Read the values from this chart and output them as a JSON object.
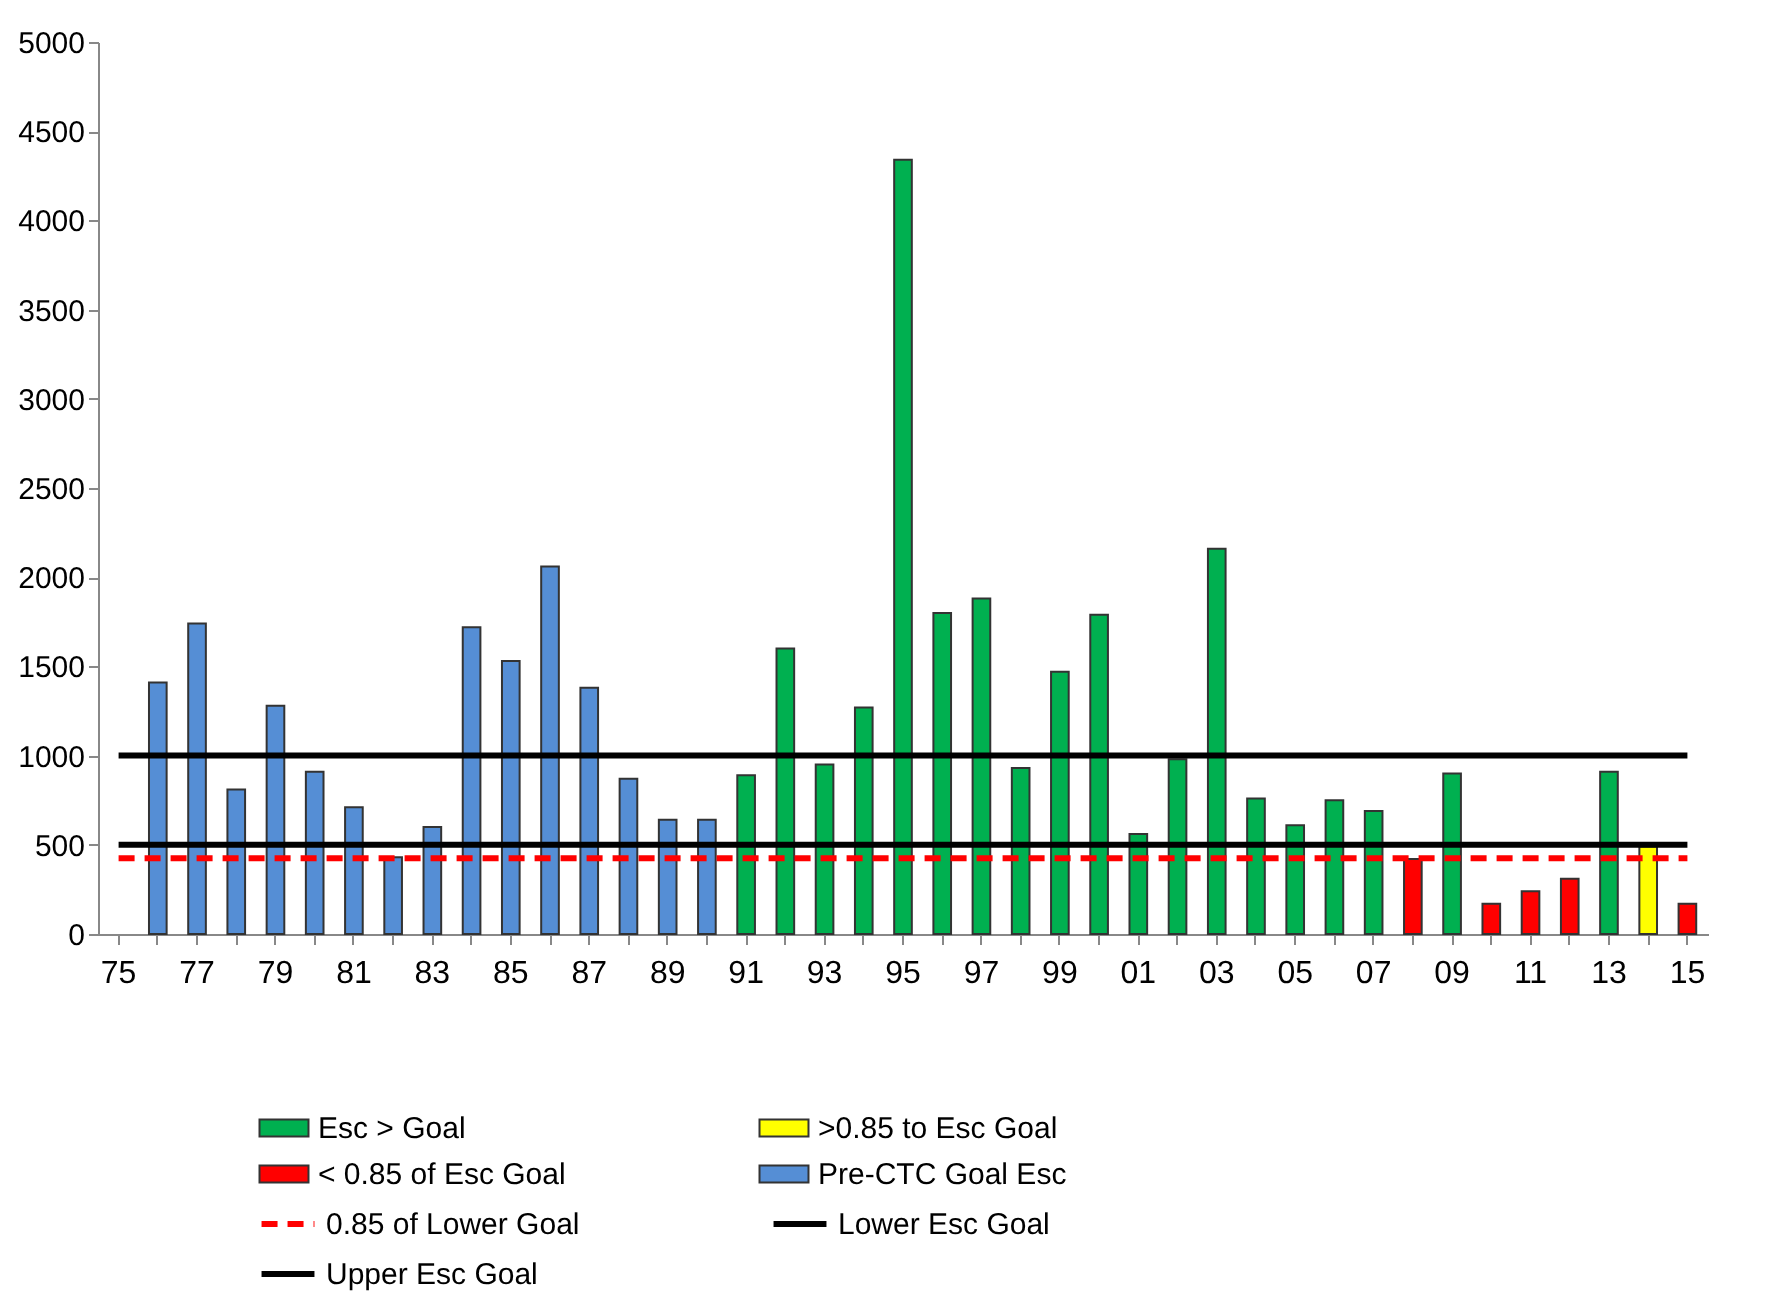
{
  "chart_data": {
    "type": "bar",
    "categories": [
      "75",
      null,
      "77",
      null,
      "79",
      null,
      "81",
      null,
      "83",
      null,
      "85",
      null,
      "87",
      null,
      "89",
      null,
      "91",
      null,
      "93",
      null,
      "95",
      null,
      "97",
      null,
      "99",
      null,
      "01",
      null,
      "03",
      null,
      "05",
      null,
      "07",
      null,
      "09",
      null,
      "11",
      null,
      "13",
      null,
      "15"
    ],
    "series": [
      {
        "name": "Esc > Goal",
        "color": "#00b050",
        "values": [
          null,
          null,
          null,
          null,
          null,
          null,
          null,
          null,
          null,
          null,
          null,
          null,
          null,
          null,
          null,
          null,
          890,
          1600,
          950,
          1270,
          4340,
          1800,
          1880,
          930,
          1470,
          1790,
          560,
          980,
          2160,
          760,
          610,
          750,
          690,
          null,
          900,
          null,
          null,
          null,
          910,
          null,
          null
        ]
      },
      {
        "name": ">0.85 to  Esc Goal",
        "color": "#ffff00",
        "values": [
          null,
          null,
          null,
          null,
          null,
          null,
          null,
          null,
          null,
          null,
          null,
          null,
          null,
          null,
          null,
          null,
          null,
          null,
          null,
          null,
          null,
          null,
          null,
          null,
          null,
          null,
          null,
          null,
          null,
          null,
          null,
          null,
          null,
          null,
          null,
          null,
          null,
          null,
          null,
          490,
          null
        ]
      },
      {
        "name": "< 0.85 of  Esc Goal",
        "color": "#ff0000",
        "values": [
          null,
          null,
          null,
          null,
          null,
          null,
          null,
          null,
          null,
          null,
          null,
          null,
          null,
          null,
          null,
          null,
          null,
          null,
          null,
          null,
          null,
          null,
          null,
          null,
          null,
          null,
          null,
          null,
          null,
          null,
          null,
          null,
          null,
          420,
          null,
          170,
          240,
          310,
          null,
          null,
          170
        ]
      },
      {
        "name": "Pre-CTC Goal Esc",
        "color": "#558ed5",
        "values": [
          null,
          1410,
          1740,
          810,
          1280,
          910,
          710,
          430,
          600,
          1720,
          1530,
          2060,
          1380,
          870,
          640,
          640,
          null,
          null,
          null,
          null,
          null,
          null,
          null,
          null,
          null,
          null,
          null,
          null,
          null,
          null,
          null,
          null,
          null,
          null,
          null,
          null,
          null,
          null,
          null,
          null,
          null
        ]
      },
      {
        "name": "0.85 of Lower Goal",
        "type": "line",
        "line_style": "dashed",
        "color": "#ff0000",
        "values": [
          425,
          425,
          425,
          425,
          425,
          425,
          425,
          425,
          425,
          425,
          425,
          425,
          425,
          425,
          425,
          425,
          425,
          425,
          425,
          425,
          425,
          425,
          425,
          425,
          425,
          425,
          425,
          425,
          425,
          425,
          425,
          425,
          425,
          425,
          425,
          425,
          425,
          425,
          425,
          425,
          425
        ]
      },
      {
        "name": "Lower Esc Goal",
        "type": "line",
        "line_style": "solid",
        "color": "#000000",
        "values": [
          500,
          500,
          500,
          500,
          500,
          500,
          500,
          500,
          500,
          500,
          500,
          500,
          500,
          500,
          500,
          500,
          500,
          500,
          500,
          500,
          500,
          500,
          500,
          500,
          500,
          500,
          500,
          500,
          500,
          500,
          500,
          500,
          500,
          500,
          500,
          500,
          500,
          500,
          500,
          500,
          500
        ]
      },
      {
        "name": "Upper Esc Goal",
        "type": "line",
        "line_style": "solid",
        "color": "#000000",
        "values": [
          1000,
          1000,
          1000,
          1000,
          1000,
          1000,
          1000,
          1000,
          1000,
          1000,
          1000,
          1000,
          1000,
          1000,
          1000,
          1000,
          1000,
          1000,
          1000,
          1000,
          1000,
          1000,
          1000,
          1000,
          1000,
          1000,
          1000,
          1000,
          1000,
          1000,
          1000,
          1000,
          1000,
          1000,
          1000,
          1000,
          1000,
          1000,
          1000,
          1000,
          1000
        ]
      }
    ],
    "ylim": [
      0,
      5000
    ],
    "yticks": [
      0,
      500,
      1000,
      1500,
      2000,
      2500,
      3000,
      3500,
      4000,
      4500,
      5000
    ],
    "grid": false,
    "legend": "bottom"
  }
}
